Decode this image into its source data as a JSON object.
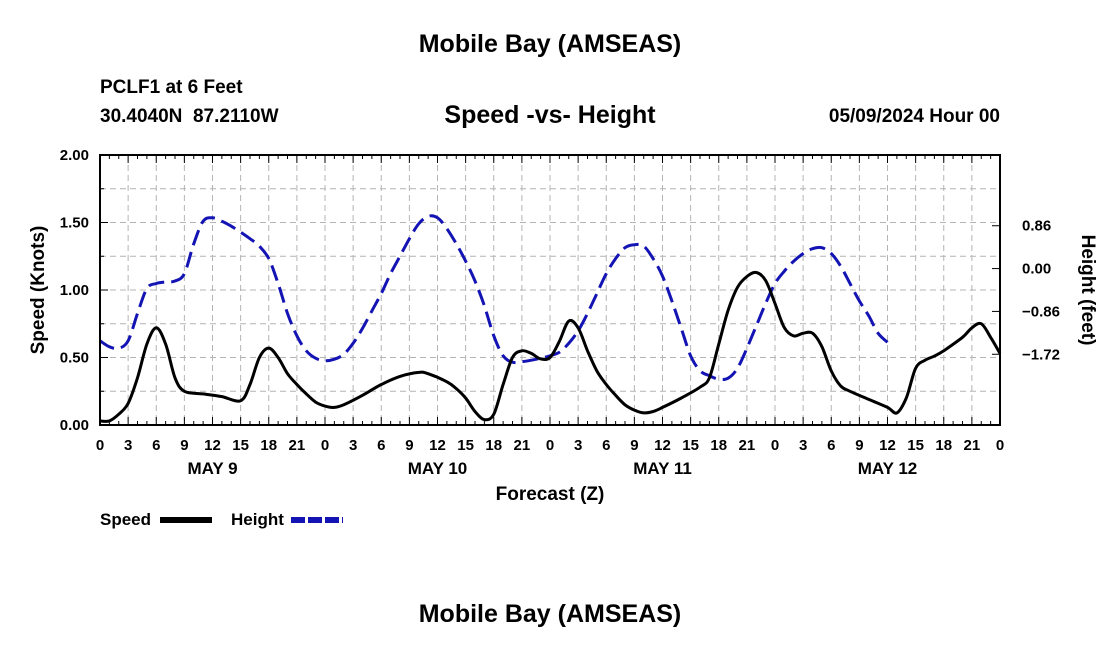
{
  "header": {
    "title": "Mobile Bay (AMSEAS)",
    "station": "PCLF1 at 6 Feet",
    "coordinates": "30.4040N  87.2110W",
    "datetime": "05/09/2024 Hour 00"
  },
  "footer": {
    "title": "Mobile Bay (AMSEAS)"
  },
  "chart_data": {
    "type": "line",
    "title": "Speed -vs- Height",
    "xlabel": "Forecast (Z)",
    "ylabel": "Speed (Knots)",
    "y2label": "Height (feet)",
    "xlim": [
      0,
      96
    ],
    "ylim": [
      0,
      2
    ],
    "y2lim": [
      -3.14,
      2.28
    ],
    "x_tick_labels": [
      "0",
      "3",
      "6",
      "9",
      "12",
      "15",
      "18",
      "21",
      "0",
      "3",
      "6",
      "9",
      "12",
      "15",
      "18",
      "21",
      "0",
      "3",
      "6",
      "9",
      "12",
      "15",
      "18",
      "21",
      "0",
      "3",
      "6",
      "9",
      "12",
      "15",
      "18",
      "21",
      "0"
    ],
    "day_labels": [
      {
        "label": "MAY 9",
        "x": 12
      },
      {
        "label": "MAY 10",
        "x": 36
      },
      {
        "label": "MAY 11",
        "x": 60
      },
      {
        "label": "MAY 12",
        "x": 84
      }
    ],
    "y_ticks": [
      {
        "value": 0,
        "label": "0.00"
      },
      {
        "value": 0.5,
        "label": "0.50"
      },
      {
        "value": 1,
        "label": "1.00"
      },
      {
        "value": 1.5,
        "label": "1.50"
      },
      {
        "value": 2,
        "label": "2.00"
      }
    ],
    "y2_ticks": [
      {
        "value": 0.86,
        "label": "0.86"
      },
      {
        "value": 0,
        "label": "0.00"
      },
      {
        "value": -0.86,
        "label": "−0.86"
      },
      {
        "value": -1.72,
        "label": "−1.72"
      }
    ],
    "grid": true,
    "legend_position": "bottom-left",
    "series": [
      {
        "name": "Speed",
        "axis": "left",
        "color": "#000000",
        "dash": "solid",
        "points": [
          [
            0,
            0.03
          ],
          [
            1,
            0.03
          ],
          [
            2,
            0.08
          ],
          [
            3,
            0.16
          ],
          [
            4,
            0.35
          ],
          [
            5,
            0.6
          ],
          [
            6,
            0.72
          ],
          [
            7,
            0.6
          ],
          [
            8,
            0.35
          ],
          [
            9,
            0.25
          ],
          [
            11,
            0.23
          ],
          [
            13,
            0.21
          ],
          [
            15,
            0.18
          ],
          [
            16,
            0.3
          ],
          [
            17,
            0.5
          ],
          [
            18,
            0.57
          ],
          [
            19,
            0.5
          ],
          [
            20,
            0.38
          ],
          [
            21,
            0.3
          ],
          [
            22,
            0.23
          ],
          [
            23,
            0.17
          ],
          [
            24,
            0.14
          ],
          [
            25,
            0.13
          ],
          [
            26,
            0.15
          ],
          [
            28,
            0.22
          ],
          [
            30,
            0.3
          ],
          [
            32,
            0.36
          ],
          [
            34,
            0.39
          ],
          [
            35,
            0.38
          ],
          [
            37,
            0.32
          ],
          [
            38,
            0.27
          ],
          [
            39,
            0.2
          ],
          [
            40,
            0.1
          ],
          [
            41,
            0.04
          ],
          [
            42,
            0.08
          ],
          [
            43,
            0.3
          ],
          [
            44,
            0.5
          ],
          [
            45,
            0.55
          ],
          [
            46,
            0.53
          ],
          [
            47,
            0.49
          ],
          [
            48,
            0.5
          ],
          [
            49,
            0.62
          ],
          [
            50,
            0.77
          ],
          [
            51,
            0.72
          ],
          [
            52,
            0.55
          ],
          [
            53,
            0.4
          ],
          [
            54,
            0.3
          ],
          [
            55,
            0.22
          ],
          [
            56,
            0.15
          ],
          [
            57,
            0.11
          ],
          [
            58,
            0.09
          ],
          [
            59,
            0.1
          ],
          [
            60,
            0.13
          ],
          [
            62,
            0.2
          ],
          [
            64,
            0.28
          ],
          [
            65,
            0.35
          ],
          [
            66,
            0.6
          ],
          [
            67,
            0.85
          ],
          [
            68,
            1.02
          ],
          [
            69,
            1.1
          ],
          [
            70,
            1.13
          ],
          [
            71,
            1.07
          ],
          [
            72,
            0.9
          ],
          [
            73,
            0.72
          ],
          [
            74,
            0.66
          ],
          [
            75,
            0.68
          ],
          [
            76,
            0.68
          ],
          [
            77,
            0.58
          ],
          [
            78,
            0.4
          ],
          [
            79,
            0.29
          ],
          [
            80,
            0.25
          ],
          [
            82,
            0.19
          ],
          [
            84,
            0.13
          ],
          [
            85,
            0.09
          ],
          [
            86,
            0.2
          ],
          [
            87,
            0.42
          ],
          [
            88,
            0.48
          ],
          [
            89,
            0.51
          ],
          [
            90,
            0.55
          ],
          [
            92,
            0.65
          ],
          [
            93,
            0.72
          ],
          [
            94,
            0.75
          ],
          [
            95,
            0.65
          ],
          [
            96,
            0.53
          ]
        ]
      },
      {
        "name": "Height",
        "axis": "right",
        "color": "#1414b4",
        "dash": "dashed",
        "points": [
          [
            0,
            -1.45
          ],
          [
            1,
            -1.57
          ],
          [
            2,
            -1.6
          ],
          [
            3,
            -1.45
          ],
          [
            4,
            -0.9
          ],
          [
            5,
            -0.4
          ],
          [
            6,
            -0.3
          ],
          [
            7,
            -0.27
          ],
          [
            8,
            -0.25
          ],
          [
            9,
            -0.1
          ],
          [
            10,
            0.5
          ],
          [
            11,
            0.95
          ],
          [
            12,
            1.02
          ],
          [
            13,
            0.95
          ],
          [
            14,
            0.85
          ],
          [
            15,
            0.73
          ],
          [
            16,
            0.6
          ],
          [
            17,
            0.45
          ],
          [
            18,
            0.2
          ],
          [
            19,
            -0.3
          ],
          [
            20,
            -0.9
          ],
          [
            21,
            -1.35
          ],
          [
            22,
            -1.65
          ],
          [
            23,
            -1.8
          ],
          [
            24,
            -1.85
          ],
          [
            25,
            -1.82
          ],
          [
            26,
            -1.72
          ],
          [
            27,
            -1.5
          ],
          [
            28,
            -1.2
          ],
          [
            29,
            -0.85
          ],
          [
            30,
            -0.5
          ],
          [
            31,
            -0.1
          ],
          [
            32,
            0.25
          ],
          [
            33,
            0.6
          ],
          [
            34,
            0.9
          ],
          [
            35,
            1.05
          ],
          [
            36,
            1.02
          ],
          [
            37,
            0.8
          ],
          [
            38,
            0.5
          ],
          [
            39,
            0.15
          ],
          [
            40,
            -0.25
          ],
          [
            41,
            -0.75
          ],
          [
            42,
            -1.35
          ],
          [
            43,
            -1.75
          ],
          [
            44,
            -1.88
          ],
          [
            45,
            -1.87
          ],
          [
            46,
            -1.84
          ],
          [
            47,
            -1.8
          ],
          [
            48,
            -1.75
          ],
          [
            49,
            -1.68
          ],
          [
            50,
            -1.5
          ],
          [
            51,
            -1.25
          ],
          [
            52,
            -0.9
          ],
          [
            53,
            -0.5
          ],
          [
            54,
            -0.1
          ],
          [
            55,
            0.2
          ],
          [
            56,
            0.42
          ],
          [
            57,
            0.48
          ],
          [
            58,
            0.45
          ],
          [
            59,
            0.2
          ],
          [
            60,
            -0.15
          ],
          [
            61,
            -0.65
          ],
          [
            62,
            -1.2
          ],
          [
            63,
            -1.75
          ],
          [
            64,
            -2.05
          ],
          [
            65,
            -2.15
          ],
          [
            66,
            -2.22
          ],
          [
            67,
            -2.2
          ],
          [
            68,
            -2.0
          ],
          [
            69,
            -1.6
          ],
          [
            70,
            -1.15
          ],
          [
            71,
            -0.7
          ],
          [
            72,
            -0.3
          ],
          [
            73,
            -0.05
          ],
          [
            74,
            0.15
          ],
          [
            75,
            0.3
          ],
          [
            76,
            0.4
          ],
          [
            77,
            0.42
          ],
          [
            78,
            0.3
          ],
          [
            79,
            0.05
          ],
          [
            80,
            -0.3
          ],
          [
            81,
            -0.65
          ],
          [
            82,
            -0.95
          ],
          [
            83,
            -1.3
          ],
          [
            84,
            -1.48
          ]
        ]
      }
    ]
  }
}
